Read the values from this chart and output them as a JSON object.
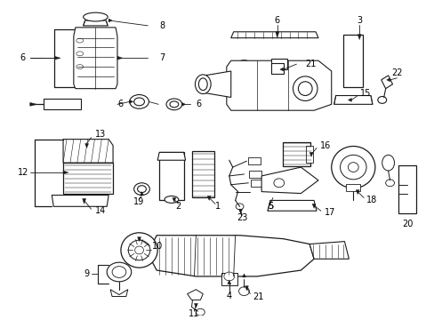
{
  "background_color": "#ffffff",
  "line_color": "#1a1a1a",
  "text_color": "#000000",
  "figsize": [
    4.89,
    3.6
  ],
  "dpi": 100
}
